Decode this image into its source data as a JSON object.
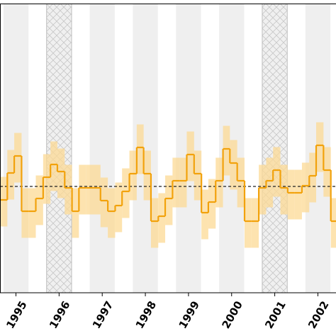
{
  "chart_data": {
    "type": "step",
    "xlim": [
      1994.63,
      2002.42
    ],
    "ylim": [
      -3,
      5.16
    ],
    "xticks": [
      1995,
      1996,
      1997,
      1998,
      1999,
      2000,
      2001,
      2002
    ],
    "shaded_years": [
      1995,
      1996,
      1997,
      1998,
      1999,
      2000,
      2001,
      2002
    ],
    "hatched_years": [
      1996,
      2001
    ],
    "hline": 0,
    "color": "#f2a20c",
    "band_color": "#fcd994",
    "x": [
      1994.63,
      1994.8,
      1994.96,
      1995.13,
      1995.3,
      1995.46,
      1995.63,
      1995.8,
      1995.96,
      1996.13,
      1996.3,
      1996.46,
      1996.63,
      1996.8,
      1996.96,
      1997.13,
      1997.3,
      1997.46,
      1997.63,
      1997.8,
      1997.96,
      1998.13,
      1998.3,
      1998.46,
      1998.63,
      1998.8,
      1998.96,
      1999.13,
      1999.3,
      1999.46,
      1999.63,
      1999.8,
      1999.96,
      2000.13,
      2000.3,
      2000.46,
      2000.63,
      2000.8,
      2000.96,
      2001.13,
      2001.3,
      2001.46,
      2001.63,
      2001.8,
      2001.96,
      2002.13,
      2002.3,
      2002.46
    ],
    "values": [
      -0.38,
      0.38,
      0.86,
      -0.7,
      -0.7,
      -0.34,
      0.26,
      0.62,
      0.42,
      -0.04,
      -0.7,
      -0.04,
      -0.04,
      -0.04,
      -0.4,
      -0.7,
      -0.54,
      -0.14,
      0.36,
      1.1,
      0.36,
      -0.98,
      -0.84,
      -0.34,
      0.16,
      0.16,
      0.9,
      0.36,
      -0.74,
      -0.44,
      0.16,
      1.06,
      0.66,
      0.16,
      -0.98,
      -0.98,
      -0.04,
      0.16,
      0.46,
      -0.04,
      -0.18,
      -0.18,
      0.02,
      0.3,
      1.16,
      0.46,
      -0.98,
      -0.98
    ],
    "upper": [
      0.27,
      1.03,
      1.51,
      -0.05,
      -0.05,
      0.31,
      0.91,
      1.27,
      1.07,
      0.61,
      -0.05,
      0.61,
      0.61,
      0.61,
      0.25,
      -0.05,
      0.11,
      0.51,
      1.01,
      1.75,
      1.01,
      -0.33,
      -0.19,
      0.31,
      0.81,
      0.81,
      1.55,
      1.01,
      -0.09,
      0.21,
      0.81,
      1.71,
      1.31,
      0.81,
      -0.33,
      -0.33,
      0.61,
      0.81,
      1.11,
      0.61,
      0.47,
      0.47,
      0.67,
      0.95,
      1.81,
      1.11,
      -0.33,
      -0.33
    ],
    "lower": [
      -1.13,
      -0.37,
      0.11,
      -1.45,
      -1.45,
      -1.09,
      -0.49,
      -0.13,
      -0.33,
      -0.79,
      -1.45,
      -0.79,
      -0.79,
      -0.79,
      -1.15,
      -1.45,
      -1.29,
      -0.89,
      -0.39,
      0.35,
      -0.39,
      -1.73,
      -1.59,
      -1.09,
      -0.59,
      -0.59,
      0.15,
      -0.39,
      -1.49,
      -1.19,
      -0.59,
      0.31,
      -0.09,
      -0.59,
      -1.73,
      -1.73,
      -0.79,
      -0.59,
      -0.29,
      -0.79,
      -0.93,
      -0.93,
      -0.73,
      -0.45,
      0.41,
      -0.29,
      -1.73,
      -1.73
    ]
  }
}
